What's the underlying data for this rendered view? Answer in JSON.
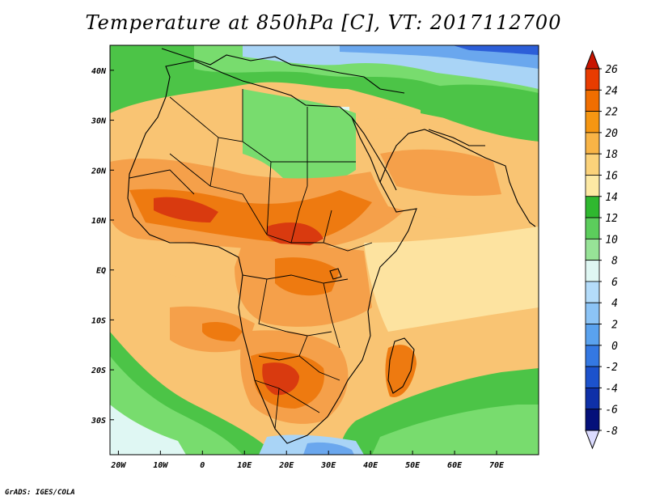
{
  "title": "Temperature at 850hPa [C], VT: 2017112700",
  "credit": "GrADS: IGES/COLA",
  "lat_labels": [
    "40N",
    "30N",
    "20N",
    "10N",
    "EQ",
    "10S",
    "20S",
    "30S"
  ],
  "lon_labels": [
    "20W",
    "10W",
    "0",
    "10E",
    "20E",
    "30E",
    "40E",
    "50E",
    "60E",
    "70E"
  ],
  "colorbar": {
    "labels": [
      "26",
      "24",
      "22",
      "20",
      "18",
      "16",
      "14",
      "12",
      "10",
      "8",
      "6",
      "4",
      "2",
      "0",
      "-2",
      "-4",
      "-6",
      "-8"
    ],
    "colors": [
      "#c81400",
      "#e83c00",
      "#f06e00",
      "#f59612",
      "#f8b446",
      "#fbd27a",
      "#fde9a4",
      "#2fb82f",
      "#5ccd5c",
      "#97e397",
      "#dff7f3",
      "#b4dcfa",
      "#8cc4f6",
      "#5aa2ee",
      "#3478e2",
      "#1c52cc",
      "#0e30a8",
      "#04107a"
    ],
    "over_color": "#c81400",
    "under_color": "#dcdcff"
  },
  "map": {
    "extent": {
      "lon_min": -22,
      "lon_max": 80,
      "lat_min": -37,
      "lat_max": 45
    },
    "fill_colors": {
      "hot_deep": "#d93a0f",
      "hot": "#ee7a10",
      "warm": "#f5a04a",
      "mild": "#f9c473",
      "tepid": "#fde3a0",
      "green_light": "#78dc6e",
      "green": "#4cc447",
      "pale": "#dff7f3",
      "sky": "#a9d4f6",
      "blue": "#6aa7ee",
      "blue_deep": "#2c5ed8",
      "border": "#000000"
    }
  }
}
